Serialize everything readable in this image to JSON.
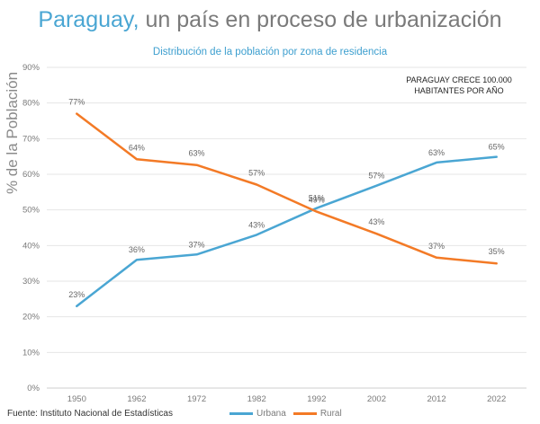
{
  "chart_data": {
    "type": "line",
    "title_highlight": "Paraguay,",
    "title_rest": "un país en proceso de urbanización",
    "subtitle": "Distribución de la población por zona de residencia",
    "ylabel": "% de la Población",
    "annotation_line1": "PARAGUAY CRECE 100.000",
    "annotation_line2": "HABITANTES POR AÑO",
    "source": "Fuente: Instituto Nacional de Estadísticas",
    "categories": [
      "1950",
      "1962",
      "1972",
      "1982",
      "1992",
      "2002",
      "2012",
      "2022"
    ],
    "ylim": [
      0,
      90
    ],
    "yticks": [
      0,
      10,
      20,
      30,
      40,
      50,
      60,
      70,
      80,
      90
    ],
    "ytick_labels": [
      "0%",
      "10%",
      "20%",
      "30%",
      "40%",
      "50%",
      "60%",
      "70%",
      "80%",
      "90%"
    ],
    "grid": true,
    "legend_position": "bottom",
    "series": [
      {
        "name": "Urbana",
        "color": "#4aa6d3",
        "values": [
          23,
          36,
          37.5,
          43,
          50.5,
          56.8,
          63.3,
          64.9
        ],
        "labels": [
          "23%",
          "36%",
          "37%",
          "43%",
          "51%",
          "57%",
          "63%",
          "65%"
        ]
      },
      {
        "name": "Rural",
        "color": "#f37a26",
        "values": [
          77,
          64.2,
          62.6,
          57.1,
          49.5,
          43.3,
          36.6,
          35
        ],
        "labels": [
          "77%",
          "64%",
          "63%",
          "57%",
          "49%",
          "43%",
          "37%",
          "35%"
        ]
      }
    ]
  }
}
